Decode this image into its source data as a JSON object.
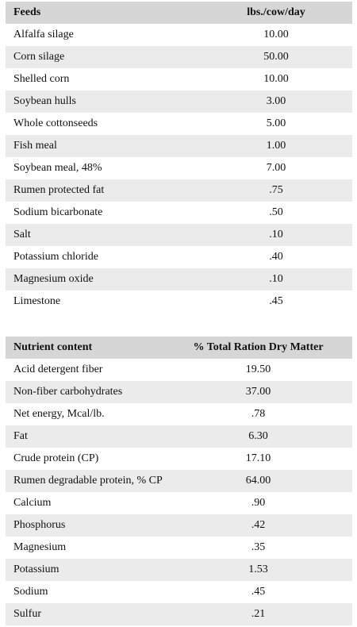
{
  "feeds_table": {
    "header": {
      "name": "Feeds",
      "value": "lbs./cow/day"
    },
    "rows": [
      {
        "name": "Alfalfa silage",
        "value": "10.00"
      },
      {
        "name": "Corn silage",
        "value": "50.00"
      },
      {
        "name": "Shelled corn",
        "value": "10.00"
      },
      {
        "name": "Soybean hulls",
        "value": "3.00"
      },
      {
        "name": "Whole cottonseeds",
        "value": "5.00"
      },
      {
        "name": "Fish meal",
        "value": "1.00"
      },
      {
        "name": "Soybean meal, 48%",
        "value": "7.00"
      },
      {
        "name": "Rumen protected fat",
        "value": ".75"
      },
      {
        "name": "Sodium bicarbonate",
        "value": ".50"
      },
      {
        "name": "Salt",
        "value": ".10"
      },
      {
        "name": "Potassium chloride",
        "value": ".40"
      },
      {
        "name": "Magnesium oxide",
        "value": ".10"
      },
      {
        "name": "Limestone",
        "value": ".45"
      }
    ]
  },
  "nutrient_table": {
    "header": {
      "name": "Nutrient content",
      "value": "% Total Ration Dry Matter"
    },
    "rows": [
      {
        "name": "Acid detergent fiber",
        "value": "19.50"
      },
      {
        "name": "Non-fiber carbohydrates",
        "value": "37.00"
      },
      {
        "name": "Net energy, Mcal/lb.",
        "value": ".78"
      },
      {
        "name": "Fat",
        "value": "6.30"
      },
      {
        "name": "Crude protein (CP)",
        "value": "17.10"
      },
      {
        "name": "Rumen degradable protein, % CP",
        "value": "64.00"
      },
      {
        "name": "Calcium",
        "value": ".90"
      },
      {
        "name": "Phosphorus",
        "value": ".42"
      },
      {
        "name": "Magnesium",
        "value": ".35"
      },
      {
        "name": "Potassium",
        "value": "1.53"
      },
      {
        "name": "Sodium",
        "value": ".45"
      },
      {
        "name": "Sulfur",
        "value": ".21"
      }
    ]
  }
}
